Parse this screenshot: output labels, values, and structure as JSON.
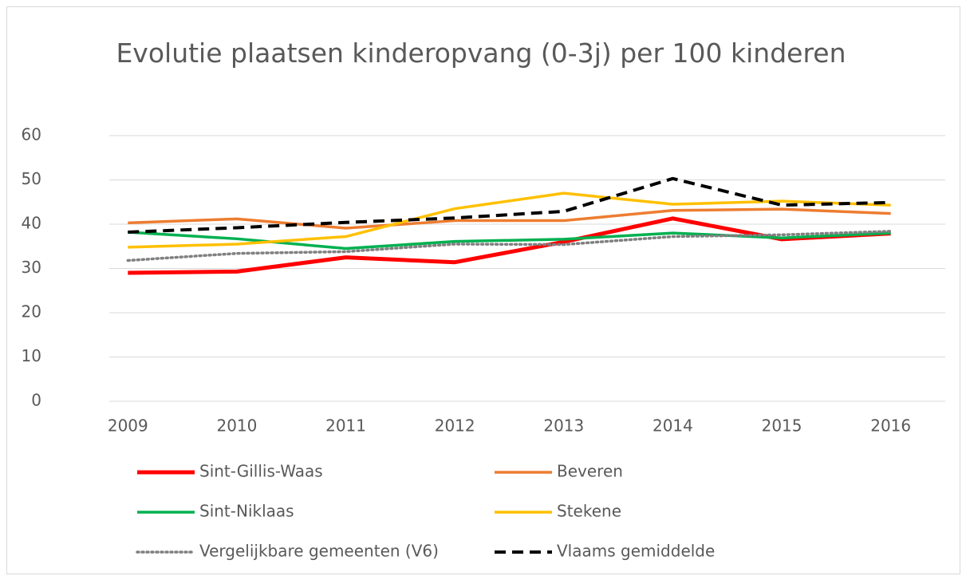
{
  "chart_data": {
    "type": "line",
    "title": "Evolutie plaatsen kinderopvang (0-3j) per 100 kinderen",
    "categories": [
      "2009",
      "2010",
      "2011",
      "2012",
      "2013",
      "2014",
      "2015",
      "2016"
    ],
    "ylim": [
      0,
      60
    ],
    "yticks": [
      0,
      10,
      20,
      30,
      40,
      50,
      60
    ],
    "grid": true,
    "legend": "bottom",
    "series": [
      {
        "name": "Sint-Gillis-Waas",
        "color": "#ff0000",
        "dash": "solid",
        "width": 5,
        "values": [
          29,
          29.3,
          32.5,
          31.4,
          36,
          41.3,
          36.6,
          37.9
        ]
      },
      {
        "name": "Beveren",
        "color": "#ed7d31",
        "dash": "solid",
        "width": 3.5,
        "values": [
          40.3,
          41.2,
          39.1,
          40.8,
          40.8,
          43.1,
          43.4,
          42.4
        ]
      },
      {
        "name": "Sint-Niklaas",
        "color": "#00b050",
        "dash": "solid",
        "width": 3.5,
        "values": [
          38.2,
          36.7,
          34.5,
          36.1,
          36.6,
          38,
          36.9,
          38
        ]
      },
      {
        "name": "Stekene",
        "color": "#ffc000",
        "dash": "solid",
        "width": 3.5,
        "values": [
          34.8,
          35.5,
          37.2,
          43.5,
          47,
          44.5,
          45.2,
          44.3
        ]
      },
      {
        "name": "Vergelijkbare gemeenten (V6)",
        "color": "#808080",
        "dash": "dotted",
        "width": 3.5,
        "values": [
          31.8,
          33.4,
          33.8,
          35.5,
          35.4,
          37.2,
          37.6,
          38.4
        ]
      },
      {
        "name": "Vlaams gemiddelde",
        "color": "#000000",
        "dash": "dashed",
        "width": 4,
        "values": [
          38.2,
          39.2,
          40.4,
          41.4,
          42.9,
          50.3,
          44.3,
          44.9
        ]
      }
    ]
  }
}
